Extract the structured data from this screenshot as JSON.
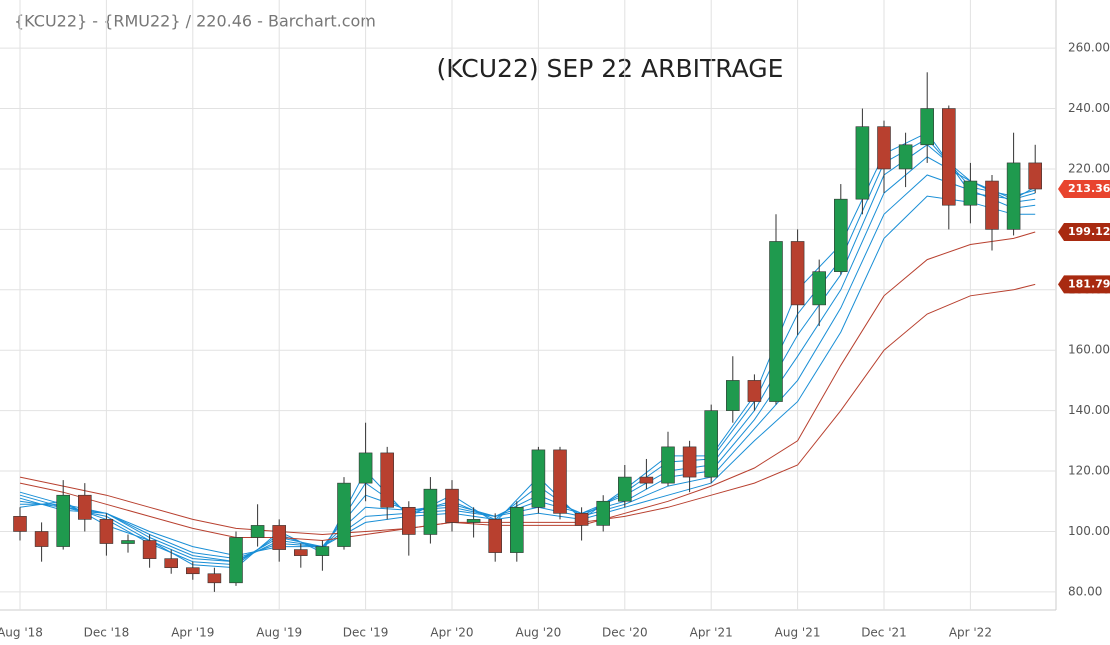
{
  "chart_data": {
    "type": "candlestick",
    "source_label": "{KCU22} - {RMU22} / 220.46 - Barchart.com",
    "title": "(KCU22) SEP 22 ARBITRAGE",
    "up_color": "#1f9a4e",
    "down_color": "#b8402f",
    "grid": true,
    "dates": [
      "2018-08",
      "2018-09",
      "2018-10",
      "2018-11",
      "2018-12",
      "2019-01",
      "2019-02",
      "2019-03",
      "2019-04",
      "2019-05",
      "2019-06",
      "2019-07",
      "2019-08",
      "2019-09",
      "2019-10",
      "2019-11",
      "2019-12",
      "2020-01",
      "2020-02",
      "2020-03",
      "2020-04",
      "2020-05",
      "2020-06",
      "2020-07",
      "2020-08",
      "2020-09",
      "2020-10",
      "2020-11",
      "2020-12",
      "2021-01",
      "2021-02",
      "2021-03",
      "2021-04",
      "2021-05",
      "2021-06",
      "2021-07",
      "2021-08",
      "2021-09",
      "2021-10",
      "2021-11",
      "2021-12",
      "2022-01",
      "2022-02",
      "2022-03",
      "2022-04",
      "2022-05",
      "2022-06",
      "2022-07"
    ],
    "open": [
      105,
      100,
      95,
      112,
      104,
      96,
      97,
      91,
      88,
      86,
      83,
      98,
      102,
      94,
      92,
      95,
      116,
      126,
      108,
      99,
      114,
      103,
      104,
      93,
      108,
      127,
      106,
      102,
      110,
      118,
      116,
      128,
      118,
      140,
      150,
      143,
      196,
      175,
      186,
      210,
      234,
      220,
      228,
      240,
      208,
      216,
      200,
      222
    ],
    "high": [
      108,
      103,
      117,
      116,
      106,
      99,
      99,
      94,
      90,
      88,
      100,
      109,
      104,
      96,
      97,
      118,
      136,
      128,
      110,
      118,
      117,
      108,
      106,
      110,
      128,
      128,
      108,
      112,
      122,
      124,
      133,
      130,
      142,
      158,
      152,
      205,
      200,
      190,
      215,
      240,
      236,
      232,
      252,
      241,
      222,
      218,
      232,
      228
    ],
    "low": [
      97,
      90,
      94,
      100,
      92,
      93,
      88,
      86,
      84,
      80,
      82,
      95,
      90,
      88,
      87,
      94,
      110,
      104,
      92,
      96,
      100,
      98,
      90,
      90,
      106,
      104,
      97,
      100,
      108,
      114,
      115,
      113,
      116,
      136,
      140,
      142,
      165,
      168,
      185,
      205,
      212,
      214,
      222,
      200,
      202,
      193,
      198,
      212
    ],
    "close": [
      100,
      95,
      112,
      104,
      96,
      97,
      91,
      88,
      86,
      83,
      98,
      102,
      94,
      92,
      95,
      116,
      126,
      108,
      99,
      114,
      103,
      104,
      93,
      108,
      127,
      106,
      102,
      110,
      118,
      116,
      128,
      118,
      140,
      150,
      143,
      196,
      175,
      186,
      210,
      234,
      220,
      228,
      240,
      208,
      216,
      200,
      222,
      213.36
    ],
    "ma_dates": [
      "2018-08",
      "2018-10",
      "2018-12",
      "2019-02",
      "2019-04",
      "2019-06",
      "2019-08",
      "2019-10",
      "2019-12",
      "2020-02",
      "2020-04",
      "2020-06",
      "2020-08",
      "2020-10",
      "2020-12",
      "2021-02",
      "2021-04",
      "2021-06",
      "2021-08",
      "2021-10",
      "2021-12",
      "2022-02",
      "2022-04",
      "2022-06",
      "2022-07"
    ],
    "moving_averages": [
      {
        "color": "#1a8fd6",
        "values": [
          108,
          110,
          102,
          97,
          89,
          88,
          100,
          93,
          120,
          105,
          112,
          103,
          118,
          104,
          114,
          125,
          125,
          145,
          180,
          195,
          225,
          232,
          212,
          210,
          214
        ]
      },
      {
        "color": "#1a8fd6",
        "values": [
          109,
          109,
          104,
          96,
          90,
          89,
          99,
          94,
          116,
          106,
          110,
          104,
          115,
          105,
          113,
          123,
          124,
          143,
          172,
          190,
          222,
          230,
          214,
          211,
          213
        ]
      },
      {
        "color": "#1a8fd6",
        "values": [
          110,
          108,
          105,
          97,
          91,
          90,
          98,
          95,
          112,
          107,
          109,
          105,
          112,
          106,
          112,
          120,
          122,
          140,
          165,
          185,
          218,
          228,
          216,
          210,
          212
        ]
      },
      {
        "color": "#1a8fd6",
        "values": [
          111,
          107,
          106,
          98,
          92,
          90,
          97,
          95,
          108,
          107,
          108,
          105,
          110,
          106,
          110,
          118,
          120,
          137,
          158,
          180,
          212,
          224,
          216,
          209,
          210
        ]
      },
      {
        "color": "#1a8fd6",
        "values": [
          112,
          108,
          106,
          99,
          93,
          91,
          96,
          95,
          105,
          106,
          107,
          105,
          108,
          105,
          109,
          115,
          118,
          134,
          150,
          174,
          205,
          218,
          213,
          207,
          208
        ]
      },
      {
        "color": "#1a8fd6",
        "values": [
          113,
          109,
          106,
          100,
          95,
          92,
          95,
          95,
          103,
          105,
          106,
          104,
          106,
          104,
          108,
          112,
          116,
          130,
          143,
          166,
          197,
          211,
          209,
          205,
          205
        ]
      },
      {
        "color": "#b8402f",
        "values": [
          116,
          113,
          109,
          105,
          101,
          98,
          98,
          97,
          99,
          101,
          103,
          102,
          102,
          102,
          106,
          110,
          115,
          121,
          130,
          155,
          178,
          190,
          195,
          197,
          199.12
        ]
      },
      {
        "color": "#b8402f",
        "values": [
          118,
          115,
          112,
          108,
          104,
          101,
          100,
          99,
          100,
          101,
          103,
          103,
          103,
          103,
          105,
          108,
          112,
          116,
          122,
          140,
          160,
          172,
          178,
          180,
          181.79
        ]
      }
    ],
    "price_tags": [
      {
        "value": 213.36,
        "color": "#e8442e"
      },
      {
        "value": 199.12,
        "color": "#a82a10"
      },
      {
        "value": 181.79,
        "color": "#a82a10"
      }
    ],
    "ylim": [
      74,
      266
    ],
    "yticks": [
      {
        "value": 80,
        "label": "80.00"
      },
      {
        "value": 100,
        "label": "100.00"
      },
      {
        "value": 120,
        "label": "120.00"
      },
      {
        "value": 140,
        "label": "140.00"
      },
      {
        "value": 160,
        "label": "160.00"
      },
      {
        "value": 180,
        "label": "180.00"
      },
      {
        "value": 200,
        "label": "200.00"
      },
      {
        "value": 220,
        "label": "220.00"
      },
      {
        "value": 240,
        "label": "240.00"
      },
      {
        "value": 260,
        "label": "260.00"
      }
    ],
    "xticks": [
      {
        "value": "2018-08",
        "label": "Aug '18"
      },
      {
        "value": "2018-12",
        "label": "Dec '18"
      },
      {
        "value": "2019-04",
        "label": "Apr '19"
      },
      {
        "value": "2019-08",
        "label": "Aug '19"
      },
      {
        "value": "2019-12",
        "label": "Dec '19"
      },
      {
        "value": "2020-04",
        "label": "Apr '20"
      },
      {
        "value": "2020-08",
        "label": "Aug '20"
      },
      {
        "value": "2020-12",
        "label": "Dec '20"
      },
      {
        "value": "2021-04",
        "label": "Apr '21"
      },
      {
        "value": "2021-08",
        "label": "Aug '21"
      },
      {
        "value": "2021-12",
        "label": "Dec '21"
      },
      {
        "value": "2022-04",
        "label": "Apr '22"
      }
    ]
  }
}
